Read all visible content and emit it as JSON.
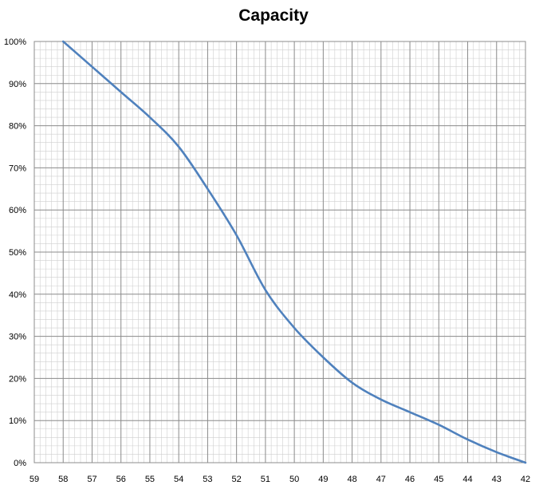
{
  "chart_data": {
    "type": "line",
    "title": "Capacity",
    "xlabel": "",
    "ylabel": "",
    "x_reversed": true,
    "xlim": [
      59,
      42
    ],
    "ylim": [
      0,
      100
    ],
    "x_ticks": [
      59,
      58,
      57,
      56,
      55,
      54,
      53,
      52,
      51,
      50,
      49,
      48,
      47,
      46,
      45,
      44,
      43,
      42
    ],
    "y_ticks": [
      0,
      10,
      20,
      30,
      40,
      50,
      60,
      70,
      80,
      90,
      100
    ],
    "x_tick_labels": [
      "59",
      "58",
      "57",
      "56",
      "55",
      "54",
      "53",
      "52",
      "51",
      "50",
      "49",
      "48",
      "47",
      "46",
      "45",
      "44",
      "43",
      "42"
    ],
    "y_tick_labels": [
      "0%",
      "10%",
      "20%",
      "30%",
      "40%",
      "50%",
      "60%",
      "70%",
      "80%",
      "90%",
      "100%"
    ],
    "grid": true,
    "minor_grid": true,
    "legend": "none",
    "line_color": "#4f81bd",
    "series": [
      {
        "x": [
          58,
          57,
          56,
          55,
          54,
          53,
          52,
          51,
          50,
          49,
          48,
          47,
          46,
          45,
          44,
          43,
          42
        ],
        "y": [
          100,
          94,
          88,
          82,
          75,
          65,
          54,
          41,
          32,
          25,
          19,
          15,
          12,
          9,
          5.5,
          2.5,
          0
        ]
      }
    ]
  }
}
